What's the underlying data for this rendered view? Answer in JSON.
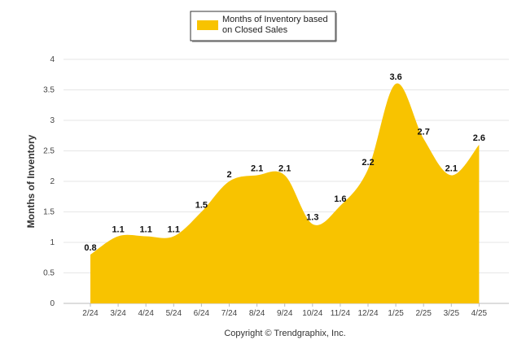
{
  "chart_data": {
    "type": "area",
    "categories": [
      "2/24",
      "3/24",
      "4/24",
      "5/24",
      "6/24",
      "7/24",
      "8/24",
      "9/24",
      "10/24",
      "11/24",
      "12/24",
      "1/25",
      "2/25",
      "3/25",
      "4/25"
    ],
    "series": [
      {
        "name_line1": "Months of Inventory based",
        "name_line2": "on Closed Sales",
        "values": [
          0.8,
          1.1,
          1.1,
          1.1,
          1.5,
          2,
          2.1,
          2.1,
          1.3,
          1.6,
          2.2,
          3.6,
          2.7,
          2.1,
          2.6
        ],
        "labels": [
          "0.8",
          "1.1",
          "1.1",
          "1.1",
          "1.5",
          "2",
          "2.1",
          "2.1",
          "1.3",
          "1.6",
          "2.2",
          "3.6",
          "2.7",
          "2.1",
          "2.6"
        ],
        "color": "#f8c300"
      }
    ],
    "ylabel": "Months of Inventory",
    "ylim": [
      0,
      4
    ],
    "yticks": [
      "0",
      "0.5",
      "1",
      "1.5",
      "2",
      "2.5",
      "3",
      "3.5",
      "4"
    ],
    "grid": true,
    "legend_position": "top-center",
    "credit": "Copyright © Trendgraphix, Inc."
  }
}
